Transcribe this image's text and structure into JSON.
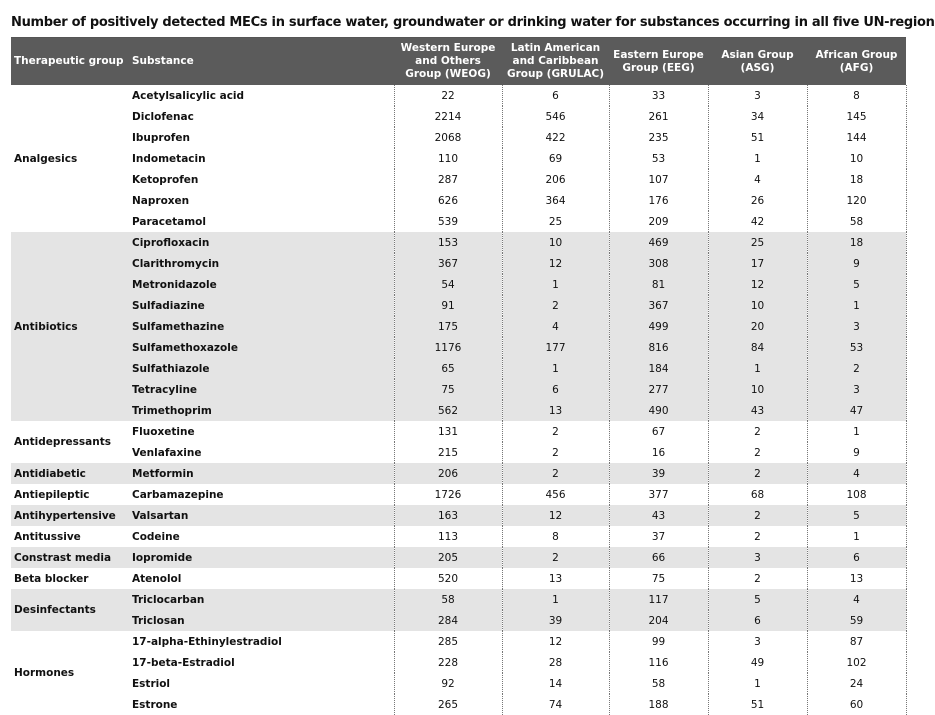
{
  "title": "Number of positively detected MECs in surface water, groundwater or drinking water for substances occurring in all five UN-regions",
  "table": {
    "headers": [
      "Therapeutic group",
      "Substance",
      "Western Europe and Others Group (WEOG)",
      "Latin American and Caribbean Group (GRULAC)",
      "Eastern Europe Group (EEG)",
      "Asian Group (ASG)",
      "African Group (AFG)"
    ],
    "groups": [
      {
        "name": "Analgesics",
        "rows": [
          [
            "Acetylsalicylic acid",
            22,
            6,
            33,
            3,
            8
          ],
          [
            "Diclofenac",
            2214,
            546,
            261,
            34,
            145
          ],
          [
            "Ibuprofen",
            2068,
            422,
            235,
            51,
            144
          ],
          [
            "Indometacin",
            110,
            69,
            53,
            1,
            10
          ],
          [
            "Ketoprofen",
            287,
            206,
            107,
            4,
            18
          ],
          [
            "Naproxen",
            626,
            364,
            176,
            26,
            120
          ],
          [
            "Paracetamol",
            539,
            25,
            209,
            42,
            58
          ]
        ]
      },
      {
        "name": "Antibiotics",
        "rows": [
          [
            "Ciprofloxacin",
            153,
            10,
            469,
            25,
            18
          ],
          [
            "Clarithromycin",
            367,
            12,
            308,
            17,
            9
          ],
          [
            "Metronidazole",
            54,
            1,
            81,
            12,
            5
          ],
          [
            "Sulfadiazine",
            91,
            2,
            367,
            10,
            1
          ],
          [
            "Sulfamethazine",
            175,
            4,
            499,
            20,
            3
          ],
          [
            "Sulfamethoxazole",
            1176,
            177,
            816,
            84,
            53
          ],
          [
            "Sulfathiazole",
            65,
            1,
            184,
            1,
            2
          ],
          [
            "Tetracyline",
            75,
            6,
            277,
            10,
            3
          ],
          [
            "Trimethoprim",
            562,
            13,
            490,
            43,
            47
          ]
        ]
      },
      {
        "name": "Antidepressants",
        "rows": [
          [
            "Fluoxetine",
            131,
            2,
            67,
            2,
            1
          ],
          [
            "Venlafaxine",
            215,
            2,
            16,
            2,
            9
          ]
        ]
      },
      {
        "name": "Antidiabetic",
        "rows": [
          [
            "Metformin",
            206,
            2,
            39,
            2,
            4
          ]
        ]
      },
      {
        "name": "Antiepileptic",
        "rows": [
          [
            "Carbamazepine",
            1726,
            456,
            377,
            68,
            108
          ]
        ]
      },
      {
        "name": "Antihypertensive",
        "rows": [
          [
            "Valsartan",
            163,
            12,
            43,
            2,
            5
          ]
        ]
      },
      {
        "name": "Antitussive",
        "rows": [
          [
            "Codeine",
            113,
            8,
            37,
            2,
            1
          ]
        ]
      },
      {
        "name": "Constrast media",
        "rows": [
          [
            "Iopromide",
            205,
            2,
            66,
            3,
            6
          ]
        ]
      },
      {
        "name": "Beta blocker",
        "rows": [
          [
            "Atenolol",
            520,
            13,
            75,
            2,
            13
          ]
        ]
      },
      {
        "name": "Desinfectants",
        "rows": [
          [
            "Triclocarban",
            58,
            1,
            117,
            5,
            4
          ],
          [
            "Triclosan",
            284,
            39,
            204,
            6,
            59
          ]
        ]
      },
      {
        "name": "Hormones",
        "rows": [
          [
            "17-alpha-Ethinylestradiol",
            285,
            12,
            99,
            3,
            87
          ],
          [
            "17-beta-Estradiol",
            228,
            28,
            116,
            49,
            102
          ],
          [
            "Estriol",
            92,
            14,
            58,
            1,
            24
          ],
          [
            "Estrone",
            265,
            74,
            188,
            51,
            60
          ]
        ]
      }
    ]
  }
}
